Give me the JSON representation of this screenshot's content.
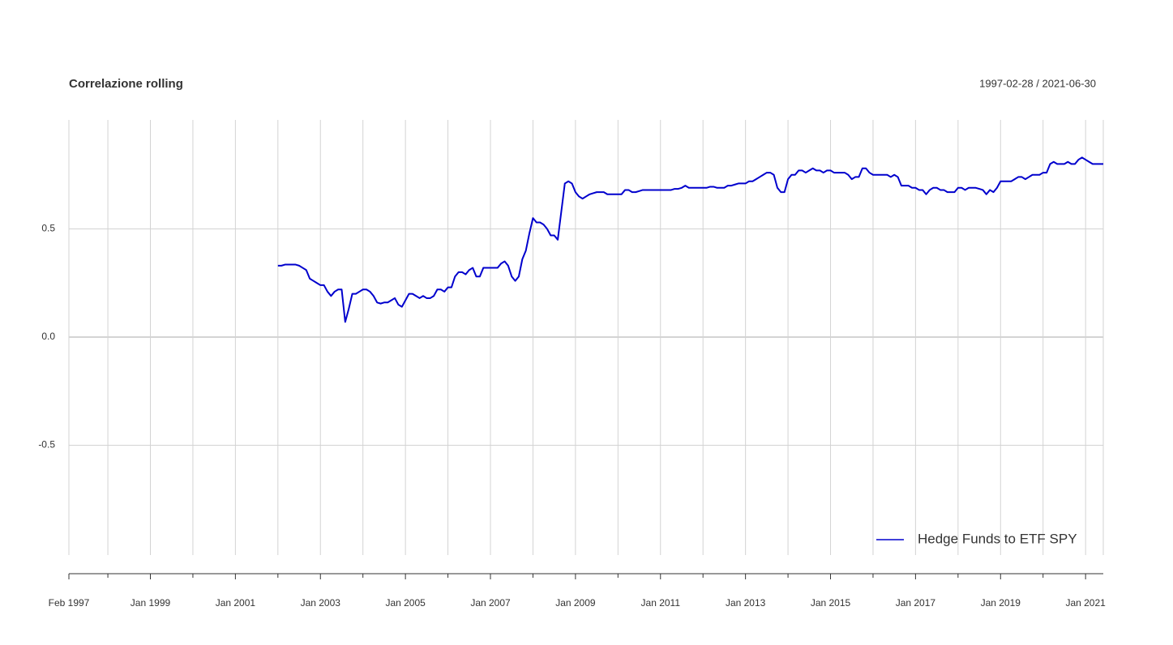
{
  "chart_data": {
    "type": "line",
    "title": "Correlazione rolling",
    "subtitle": "1997-02-28 / 2021-06-30",
    "x": [
      "2002-01",
      "2002-02",
      "2002-03",
      "2002-04",
      "2002-05",
      "2002-06",
      "2002-07",
      "2002-08",
      "2002-09",
      "2002-10",
      "2002-11",
      "2002-12",
      "2003-01",
      "2003-02",
      "2003-03",
      "2003-04",
      "2003-05",
      "2003-06",
      "2003-07",
      "2003-08",
      "2003-09",
      "2003-10",
      "2003-11",
      "2003-12",
      "2004-01",
      "2004-02",
      "2004-03",
      "2004-04",
      "2004-05",
      "2004-06",
      "2004-07",
      "2004-08",
      "2004-09",
      "2004-10",
      "2004-11",
      "2004-12",
      "2005-01",
      "2005-02",
      "2005-03",
      "2005-04",
      "2005-05",
      "2005-06",
      "2005-07",
      "2005-08",
      "2005-09",
      "2005-10",
      "2005-11",
      "2005-12",
      "2006-01",
      "2006-02",
      "2006-03",
      "2006-04",
      "2006-05",
      "2006-06",
      "2006-07",
      "2006-08",
      "2006-09",
      "2006-10",
      "2006-11",
      "2006-12",
      "2007-01",
      "2007-02",
      "2007-03",
      "2007-04",
      "2007-05",
      "2007-06",
      "2007-07",
      "2007-08",
      "2007-09",
      "2007-10",
      "2007-11",
      "2007-12",
      "2008-01",
      "2008-02",
      "2008-03",
      "2008-04",
      "2008-05",
      "2008-06",
      "2008-07",
      "2008-08",
      "2008-09",
      "2008-10",
      "2008-11",
      "2008-12",
      "2009-01",
      "2009-02",
      "2009-03",
      "2009-04",
      "2009-05",
      "2009-06",
      "2009-07",
      "2009-08",
      "2009-09",
      "2009-10",
      "2009-11",
      "2009-12",
      "2010-01",
      "2010-02",
      "2010-03",
      "2010-04",
      "2010-05",
      "2010-06",
      "2010-07",
      "2010-08",
      "2010-09",
      "2010-10",
      "2010-11",
      "2010-12",
      "2011-01",
      "2011-02",
      "2011-03",
      "2011-04",
      "2011-05",
      "2011-06",
      "2011-07",
      "2011-08",
      "2011-09",
      "2011-10",
      "2011-11",
      "2011-12",
      "2012-01",
      "2012-02",
      "2012-03",
      "2012-04",
      "2012-05",
      "2012-06",
      "2012-07",
      "2012-08",
      "2012-09",
      "2012-10",
      "2012-11",
      "2012-12",
      "2013-01",
      "2013-02",
      "2013-03",
      "2013-04",
      "2013-05",
      "2013-06",
      "2013-07",
      "2013-08",
      "2013-09",
      "2013-10",
      "2013-11",
      "2013-12",
      "2014-01",
      "2014-02",
      "2014-03",
      "2014-04",
      "2014-05",
      "2014-06",
      "2014-07",
      "2014-08",
      "2014-09",
      "2014-10",
      "2014-11",
      "2014-12",
      "2015-01",
      "2015-02",
      "2015-03",
      "2015-04",
      "2015-05",
      "2015-06",
      "2015-07",
      "2015-08",
      "2015-09",
      "2015-10",
      "2015-11",
      "2015-12",
      "2016-01",
      "2016-02",
      "2016-03",
      "2016-04",
      "2016-05",
      "2016-06",
      "2016-07",
      "2016-08",
      "2016-09",
      "2016-10",
      "2016-11",
      "2016-12",
      "2017-01",
      "2017-02",
      "2017-03",
      "2017-04",
      "2017-05",
      "2017-06",
      "2017-07",
      "2017-08",
      "2017-09",
      "2017-10",
      "2017-11",
      "2017-12",
      "2018-01",
      "2018-02",
      "2018-03",
      "2018-04",
      "2018-05",
      "2018-06",
      "2018-07",
      "2018-08",
      "2018-09",
      "2018-10",
      "2018-11",
      "2018-12",
      "2019-01",
      "2019-02",
      "2019-03",
      "2019-04",
      "2019-05",
      "2019-06",
      "2019-07",
      "2019-08",
      "2019-09",
      "2019-10",
      "2019-11",
      "2019-12",
      "2020-01",
      "2020-02",
      "2020-03",
      "2020-04",
      "2020-05",
      "2020-06",
      "2020-07",
      "2020-08",
      "2020-09",
      "2020-10",
      "2020-11",
      "2020-12",
      "2021-01",
      "2021-02",
      "2021-03",
      "2021-04",
      "2021-05",
      "2021-06"
    ],
    "series": [
      {
        "name": "Hedge Funds to ETF SPY",
        "color": "#0000CD",
        "values": [
          0.33,
          0.33,
          0.335,
          0.335,
          0.335,
          0.335,
          0.33,
          0.32,
          0.31,
          0.27,
          0.26,
          0.25,
          0.24,
          0.24,
          0.21,
          0.19,
          0.21,
          0.22,
          0.22,
          0.07,
          0.13,
          0.2,
          0.2,
          0.21,
          0.22,
          0.22,
          0.21,
          0.19,
          0.16,
          0.155,
          0.16,
          0.16,
          0.17,
          0.18,
          0.15,
          0.14,
          0.17,
          0.2,
          0.2,
          0.19,
          0.18,
          0.19,
          0.18,
          0.18,
          0.19,
          0.22,
          0.22,
          0.21,
          0.23,
          0.23,
          0.28,
          0.3,
          0.3,
          0.29,
          0.31,
          0.32,
          0.28,
          0.28,
          0.32,
          0.32,
          0.32,
          0.32,
          0.32,
          0.34,
          0.35,
          0.33,
          0.28,
          0.26,
          0.28,
          0.36,
          0.4,
          0.48,
          0.55,
          0.53,
          0.53,
          0.52,
          0.5,
          0.47,
          0.47,
          0.45,
          0.58,
          0.71,
          0.72,
          0.71,
          0.67,
          0.65,
          0.64,
          0.65,
          0.66,
          0.665,
          0.67,
          0.67,
          0.67,
          0.66,
          0.66,
          0.66,
          0.66,
          0.66,
          0.68,
          0.68,
          0.67,
          0.67,
          0.675,
          0.68,
          0.68,
          0.68,
          0.68,
          0.68,
          0.68,
          0.68,
          0.68,
          0.68,
          0.685,
          0.685,
          0.69,
          0.7,
          0.69,
          0.69,
          0.69,
          0.69,
          0.69,
          0.69,
          0.695,
          0.695,
          0.69,
          0.69,
          0.69,
          0.7,
          0.7,
          0.705,
          0.71,
          0.71,
          0.71,
          0.72,
          0.72,
          0.73,
          0.74,
          0.75,
          0.76,
          0.76,
          0.75,
          0.69,
          0.67,
          0.67,
          0.73,
          0.75,
          0.75,
          0.77,
          0.77,
          0.76,
          0.77,
          0.78,
          0.77,
          0.77,
          0.76,
          0.77,
          0.77,
          0.76,
          0.76,
          0.76,
          0.76,
          0.75,
          0.73,
          0.74,
          0.74,
          0.78,
          0.78,
          0.76,
          0.75,
          0.75,
          0.75,
          0.75,
          0.75,
          0.74,
          0.75,
          0.74,
          0.7,
          0.7,
          0.7,
          0.69,
          0.69,
          0.68,
          0.68,
          0.66,
          0.68,
          0.69,
          0.69,
          0.68,
          0.68,
          0.67,
          0.67,
          0.67,
          0.69,
          0.69,
          0.68,
          0.69,
          0.69,
          0.69,
          0.685,
          0.68,
          0.66,
          0.68,
          0.67,
          0.69,
          0.72,
          0.72,
          0.72,
          0.72,
          0.73,
          0.74,
          0.74,
          0.73,
          0.74,
          0.75,
          0.75,
          0.75,
          0.76,
          0.76,
          0.8,
          0.81,
          0.8,
          0.8,
          0.8,
          0.81,
          0.8,
          0.8,
          0.82,
          0.83,
          0.82,
          0.81,
          0.8,
          0.8,
          0.8,
          0.8
        ]
      }
    ],
    "xlim": [
      "1997-02",
      "2021-06"
    ],
    "xticks": [
      {
        "value": "1997-02",
        "label": "Feb 1997"
      },
      {
        "value": "1999-01",
        "label": "Jan 1999"
      },
      {
        "value": "2001-01",
        "label": "Jan 2001"
      },
      {
        "value": "2003-01",
        "label": "Jan 2003"
      },
      {
        "value": "2005-01",
        "label": "Jan 2005"
      },
      {
        "value": "2007-01",
        "label": "Jan 2007"
      },
      {
        "value": "2009-01",
        "label": "Jan 2009"
      },
      {
        "value": "2011-01",
        "label": "Jan 2011"
      },
      {
        "value": "2013-01",
        "label": "Jan 2013"
      },
      {
        "value": "2015-01",
        "label": "Jan 2015"
      },
      {
        "value": "2017-01",
        "label": "Jan 2017"
      },
      {
        "value": "2019-01",
        "label": "Jan 2019"
      },
      {
        "value": "2021-01",
        "label": "Jan 2021"
      }
    ],
    "minor_xticks": [
      "1998-01",
      "2000-01",
      "2002-01",
      "2004-01",
      "2006-01",
      "2008-01",
      "2010-01",
      "2012-01",
      "2014-01",
      "2016-01",
      "2018-01",
      "2020-01"
    ],
    "ylim": [
      -1,
      1
    ],
    "yticks": [
      -0.5,
      {
        "value": 0,
        "label": "0.0"
      },
      0.5
    ],
    "grid": true,
    "legend": "bottomright"
  }
}
